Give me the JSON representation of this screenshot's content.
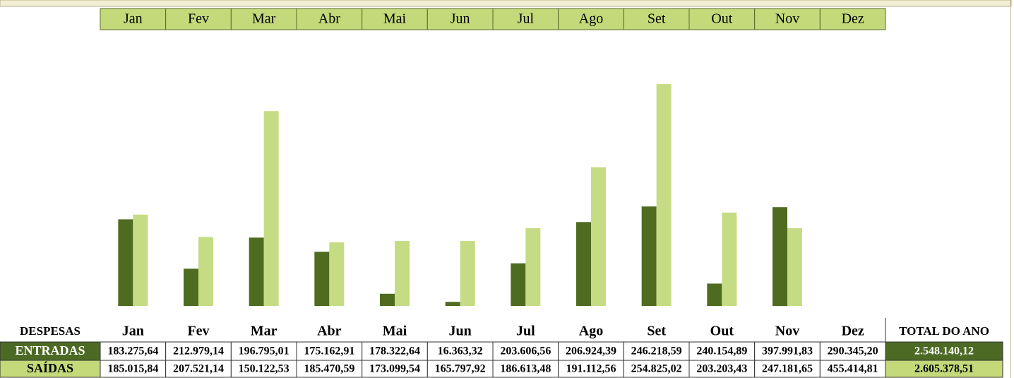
{
  "chart_data": {
    "type": "bar",
    "categories": [
      "Jan",
      "Fev",
      "Mar",
      "Abr",
      "Mai",
      "Jun",
      "Jul",
      "Ago",
      "Set",
      "Out",
      "Nov",
      "Dez"
    ],
    "series": [
      {
        "color": "#4f6b1f",
        "values": [
          128,
          55,
          101,
          80,
          18,
          6,
          63,
          124,
          147,
          33,
          146,
          null
        ]
      },
      {
        "color": "#c6dc84",
        "values": [
          135,
          102,
          288,
          94,
          96,
          96,
          115,
          205,
          328,
          138,
          115,
          null
        ]
      }
    ],
    "ylim": [
      0,
      400
    ]
  },
  "table": {
    "header": [
      "DESPESAS",
      "Jan",
      "Fev",
      "Mar",
      "Abr",
      "Mai",
      "Jun",
      "Jul",
      "Ago",
      "Set",
      "Out",
      "Nov",
      "Dez",
      "TOTAL DO ANO"
    ],
    "rows": [
      [
        "ENTRADAS",
        "183.275,64",
        "212.979,14",
        "196.795,01",
        "175.162,91",
        "178.322,64",
        "16.363,32",
        "203.606,56",
        "206.924,39",
        "246.218,59",
        "240.154,89",
        "397.991,83",
        "290.345,20",
        "2.548.140,12"
      ],
      [
        "SAÍDAS",
        "185.015,84",
        "207.521,14",
        "150.122,53",
        "185.470,59",
        "173.099,54",
        "165.797,92",
        "186.613,48",
        "191.112,56",
        "254.825,02",
        "203.203,43",
        "247.181,65",
        "455.414,81",
        "2.605.378,51"
      ]
    ]
  }
}
